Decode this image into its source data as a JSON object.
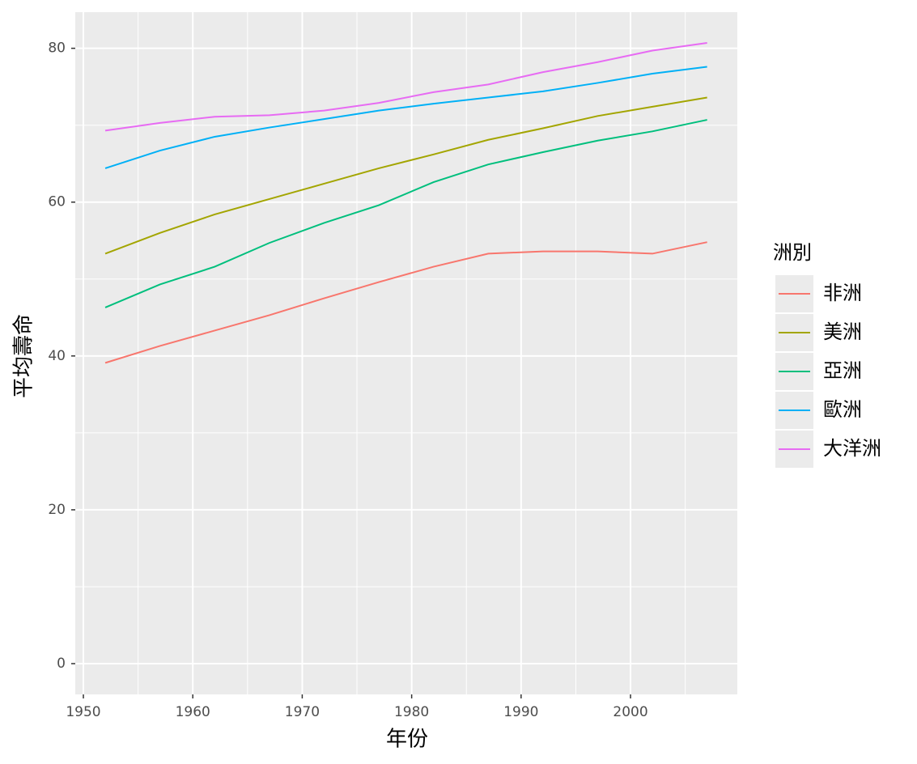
{
  "chart_data": {
    "type": "line",
    "x_label": "年份",
    "y_label": "平均壽命",
    "legend_title": "洲別",
    "x": [
      1952,
      1957,
      1962,
      1967,
      1972,
      1977,
      1982,
      1987,
      1992,
      1997,
      2002,
      2007
    ],
    "series": [
      {
        "name": "非洲",
        "color": "#F8766D",
        "values": [
          39.1,
          41.3,
          43.3,
          45.3,
          47.5,
          49.6,
          51.6,
          53.3,
          53.6,
          53.6,
          53.3,
          54.8
        ]
      },
      {
        "name": "美洲",
        "color": "#A3A500",
        "values": [
          53.3,
          56.0,
          58.4,
          60.4,
          62.4,
          64.4,
          66.2,
          68.1,
          69.6,
          71.2,
          72.4,
          73.6
        ]
      },
      {
        "name": "亞洲",
        "color": "#00BF7D",
        "values": [
          46.3,
          49.3,
          51.6,
          54.7,
          57.3,
          59.6,
          62.6,
          64.9,
          66.5,
          68.0,
          69.2,
          70.7
        ]
      },
      {
        "name": "歐洲",
        "color": "#00B0F6",
        "values": [
          64.4,
          66.7,
          68.5,
          69.7,
          70.8,
          71.9,
          72.8,
          73.6,
          74.4,
          75.5,
          76.7,
          77.6
        ]
      },
      {
        "name": "大洋洲",
        "color": "#E76BF3",
        "values": [
          69.3,
          70.3,
          71.1,
          71.3,
          71.9,
          72.9,
          74.3,
          75.3,
          76.9,
          78.2,
          79.7,
          80.7
        ]
      }
    ],
    "xlim": [
      1949.26,
      2009.76
    ],
    "ylim": [
      -4,
      84.7
    ],
    "xticks": [
      1950,
      1960,
      1970,
      1980,
      1990,
      2000
    ],
    "yticks": [
      0,
      20,
      40,
      60,
      80
    ],
    "grid": true,
    "legend_position": "right"
  }
}
